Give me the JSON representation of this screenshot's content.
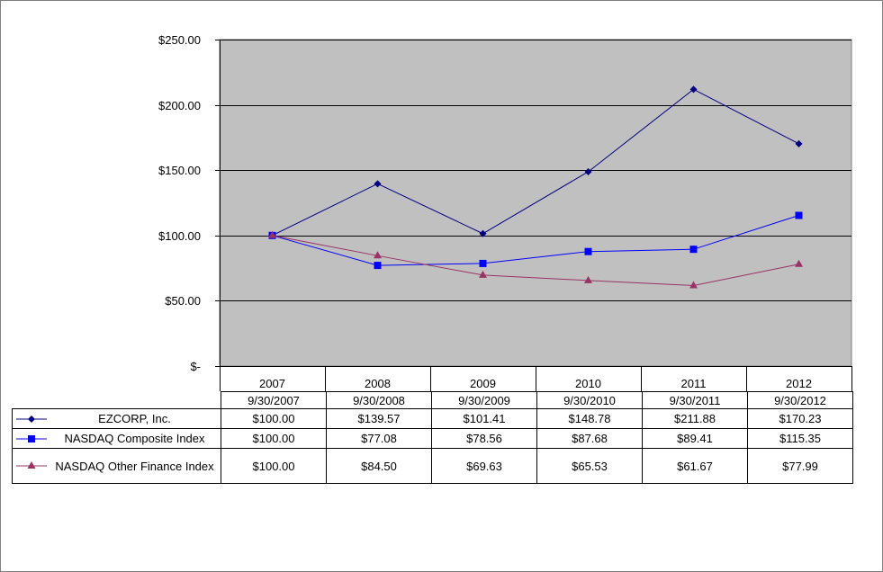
{
  "chart_data": {
    "type": "line",
    "categories": [
      "2007",
      "2008",
      "2009",
      "2010",
      "2011",
      "2012"
    ],
    "dates": [
      "9/30/2007",
      "9/30/2008",
      "9/30/2009",
      "9/30/2010",
      "9/30/2011",
      "9/30/2012"
    ],
    "ylim": [
      0,
      250
    ],
    "yticks": [
      0,
      50,
      100,
      150,
      200,
      250
    ],
    "ytick_labels": [
      "$-",
      "$50.00",
      "$100.00",
      "$150.00",
      "$200.00",
      "$250.00"
    ],
    "grid": true,
    "plot_background": "#c0c0c0",
    "series": [
      {
        "name": "EZCORP, Inc.",
        "color": "#000080",
        "marker": "diamond",
        "values": [
          100.0,
          139.57,
          101.41,
          148.78,
          211.88,
          170.23
        ],
        "value_labels": [
          "$100.00",
          "$139.57",
          "$101.41",
          "$148.78",
          "$211.88",
          "$170.23"
        ]
      },
      {
        "name": "NASDAQ Composite Index",
        "color": "#0000ff",
        "marker": "square",
        "values": [
          100.0,
          77.08,
          78.56,
          87.68,
          89.41,
          115.35
        ],
        "value_labels": [
          "$100.00",
          "$77.08",
          "$78.56",
          "$87.68",
          "$89.41",
          "$115.35"
        ]
      },
      {
        "name": "NASDAQ Other Finance Index",
        "color": "#993366",
        "marker": "triangle",
        "values": [
          100.0,
          84.5,
          69.63,
          65.53,
          61.67,
          77.99
        ],
        "value_labels": [
          "$100.00",
          "$84.50",
          "$69.63",
          "$65.53",
          "$61.67",
          "$77.99"
        ]
      }
    ]
  }
}
